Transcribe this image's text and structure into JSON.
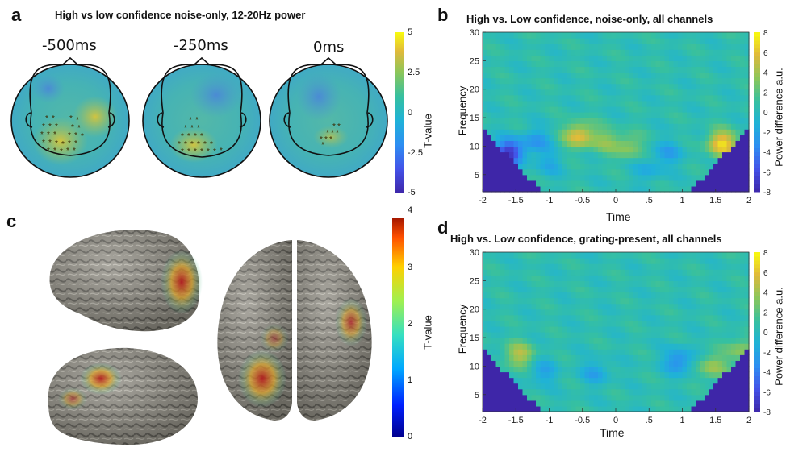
{
  "panels": {
    "a": {
      "letter": "a",
      "title": "High vs low confidence noise-only, 12-20Hz power",
      "time_labels": [
        "-500ms",
        "-250ms",
        "0ms"
      ],
      "colorbar": {
        "label": "T-value",
        "ticks": [
          "5",
          "2.5",
          "0",
          "-2.5",
          "-5"
        ]
      }
    },
    "b": {
      "letter": "b",
      "title": "High vs. Low confidence, noise-only, all channels",
      "ylabel": "Frequency",
      "xlabel": "Time",
      "colorbar_label": "Power difference a.u."
    },
    "c": {
      "letter": "c",
      "colorbar": {
        "label": "T-value",
        "ticks": [
          "4",
          "3",
          "2",
          "1",
          "0"
        ]
      }
    },
    "d": {
      "letter": "d",
      "title": "High vs. Low confidence, grating-present, all channels",
      "ylabel": "Frequency",
      "xlabel": "Time",
      "colorbar_label": "Power difference a.u."
    }
  },
  "chart_data": [
    {
      "type": "heatmap",
      "id": "b",
      "title": "High vs. Low confidence, noise-only, all channels",
      "xlabel": "Time",
      "ylabel": "Frequency",
      "x_ticks": [
        "-2",
        "-1.5",
        "-1",
        "-0.5",
        "0",
        ".5",
        "1",
        "1.5",
        "2"
      ],
      "x_tick_values": [
        -2,
        -1.5,
        -1,
        -0.5,
        0,
        0.5,
        1,
        1.5,
        2
      ],
      "y_ticks": [
        "30",
        "25",
        "20",
        "15",
        "10",
        "5"
      ],
      "y_tick_values": [
        30,
        25,
        20,
        15,
        10,
        5
      ],
      "xlim": [
        -2,
        2
      ],
      "ylim": [
        2,
        30
      ],
      "colorbar_ticks": [
        "8",
        "6",
        "4",
        "2",
        "0",
        "-2",
        "-4",
        "-6",
        "-8"
      ],
      "clim": [
        -8,
        8
      ],
      "blobs": [
        {
          "t": -1.6,
          "f": 9,
          "value": -7.5
        },
        {
          "t": -1.2,
          "f": 11,
          "value": -3
        },
        {
          "t": -0.55,
          "f": 12,
          "value": 5.5
        },
        {
          "t": -0.15,
          "f": 11,
          "value": 2.5
        },
        {
          "t": 0.2,
          "f": 10,
          "value": 3
        },
        {
          "t": 0.8,
          "f": 9,
          "value": -2.5
        },
        {
          "t": 1.6,
          "f": 10.5,
          "value": 6.5
        },
        {
          "t": -1.0,
          "f": 7,
          "value": -2
        },
        {
          "t": 0.5,
          "f": 6,
          "value": -2
        }
      ]
    },
    {
      "type": "heatmap",
      "id": "d",
      "title": "High vs. Low confidence, grating-present, all channels",
      "xlabel": "Time",
      "ylabel": "Frequency",
      "x_ticks": [
        "-2",
        "-1.5",
        "-1",
        "-0.5",
        "0",
        ".5",
        "1",
        "1.5",
        "2"
      ],
      "x_tick_values": [
        -2,
        -1.5,
        -1,
        -0.5,
        0,
        0.5,
        1,
        1.5,
        2
      ],
      "y_ticks": [
        "30",
        "25",
        "20",
        "15",
        "10",
        "5"
      ],
      "y_tick_values": [
        30,
        25,
        20,
        15,
        10,
        5
      ],
      "xlim": [
        -2,
        2
      ],
      "ylim": [
        2,
        30
      ],
      "colorbar_ticks": [
        "8",
        "6",
        "4",
        "2",
        "0",
        "-2",
        "-4",
        "-6",
        "-8"
      ],
      "clim": [
        -8,
        8
      ],
      "blobs": [
        {
          "t": -1.45,
          "f": 12,
          "value": 4
        },
        {
          "t": -1.1,
          "f": 9,
          "value": -2.5
        },
        {
          "t": -0.3,
          "f": 9,
          "value": -2.5
        },
        {
          "t": 0.95,
          "f": 11,
          "value": -4
        },
        {
          "t": 1.45,
          "f": 10,
          "value": 3.5
        },
        {
          "t": 1.9,
          "f": 13,
          "value": 3
        }
      ]
    }
  ]
}
